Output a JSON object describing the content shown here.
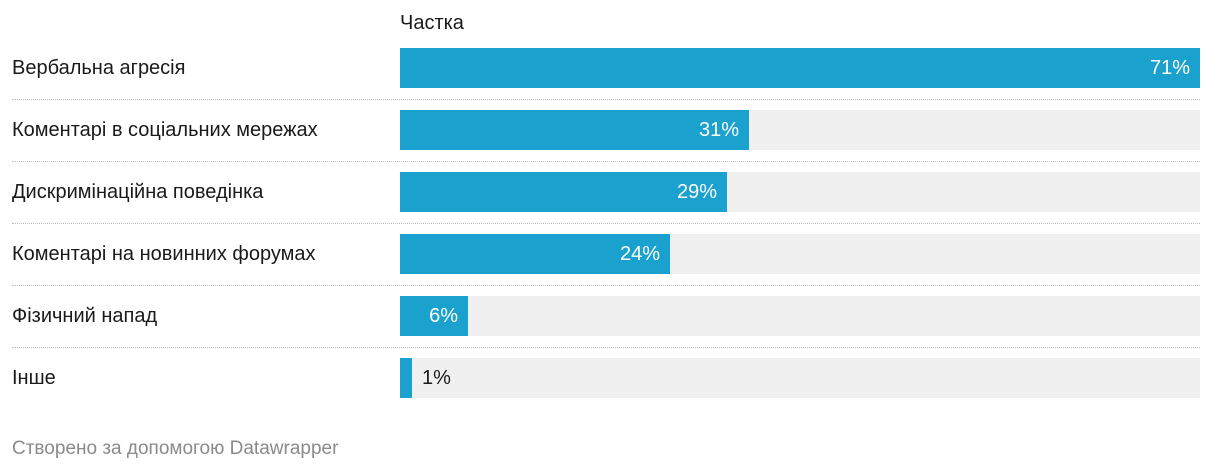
{
  "chart_data": {
    "type": "bar",
    "orientation": "horizontal",
    "column_header": "Частка",
    "categories": [
      "Вербальна агресія",
      "Коментарі в соціальних мережах",
      "Дискримінаційна поведінка",
      "Коментарі на новинних форумах",
      "Фізичний напад",
      "Інше"
    ],
    "values": [
      71,
      31,
      29,
      24,
      6,
      1
    ],
    "value_labels": [
      "71%",
      "31%",
      "29%",
      "24%",
      "6%",
      "1%"
    ],
    "xlim": [
      0,
      71
    ],
    "unit": "%",
    "bar_color": "#1aa1ce",
    "track_color": "#f0f0f0",
    "grid": false,
    "legend": "none"
  },
  "footer": {
    "credit": "Створено за допомогою Datawrapper"
  }
}
